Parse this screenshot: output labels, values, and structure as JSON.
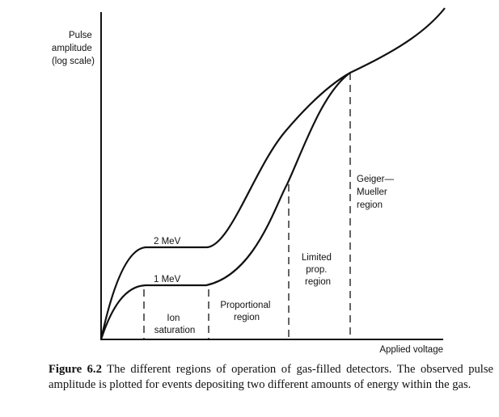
{
  "figure": {
    "y_axis_label": [
      "Pulse",
      "amplitude",
      "(log scale)"
    ],
    "x_axis_label": "Applied voltage",
    "curves": [
      {
        "label": "2 MeV"
      },
      {
        "label": "1 MeV"
      }
    ],
    "regions": [
      {
        "label": [
          "Ion",
          "saturation"
        ]
      },
      {
        "label": [
          "Proportional",
          "region"
        ]
      },
      {
        "label": [
          "Limited",
          "prop.",
          "region"
        ]
      },
      {
        "label": [
          "Geiger—",
          "Mueller",
          "region"
        ]
      }
    ]
  },
  "caption": {
    "lead": "Figure 6.2",
    "text": " The different regions of operation of gas-filled detectors. The observed pulse amplitude is plotted for events depositing two different amounts of energy within the gas."
  }
}
